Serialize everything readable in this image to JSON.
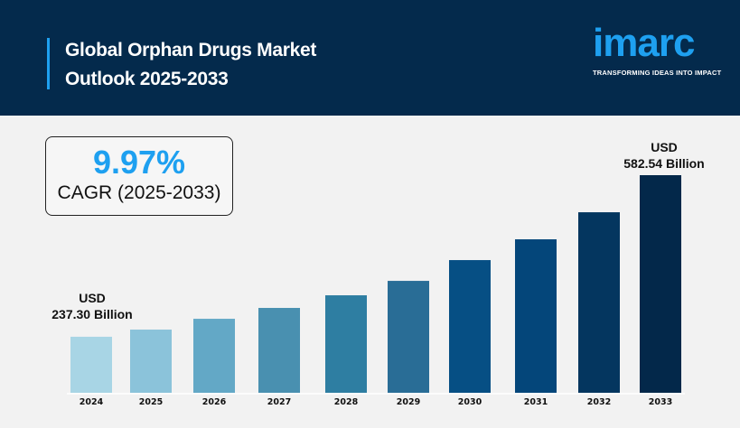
{
  "header": {
    "title_line1": "Global Orphan Drugs Market",
    "title_line2": "Outlook 2025-2033",
    "logo_text": "imarc",
    "logo_tagline": "TRANSFORMING IDEAS INTO IMPACT"
  },
  "cagr": {
    "value": "9.97%",
    "label": "CAGR (2025-2033)"
  },
  "annotations": {
    "start_unit": "USD",
    "start_value": "237.30 Billion",
    "end_unit": "USD",
    "end_value": "582.54 Billion"
  },
  "colors": {
    "header_bg": "#042a4c",
    "accent": "#1ea0f0",
    "bars": [
      "#a8d5e5",
      "#8bc3da",
      "#63a8c6",
      "#4990b0",
      "#2e7ea2",
      "#296d96",
      "#064f84",
      "#04467a",
      "#04365f",
      "#03284a"
    ]
  },
  "chart_data": {
    "type": "bar",
    "title": "",
    "xlabel": "",
    "ylabel": "",
    "categories": [
      "2024",
      "2025",
      "2026",
      "2027",
      "2028",
      "2029",
      "2030",
      "2031",
      "2032",
      "2033"
    ],
    "values": [
      237.3,
      252.6,
      275.7,
      298.9,
      325.9,
      356.7,
      401.1,
      445.5,
      503.3,
      582.54
    ],
    "ylim": [
      117.6,
      600
    ],
    "grid": false,
    "legend": "none"
  }
}
